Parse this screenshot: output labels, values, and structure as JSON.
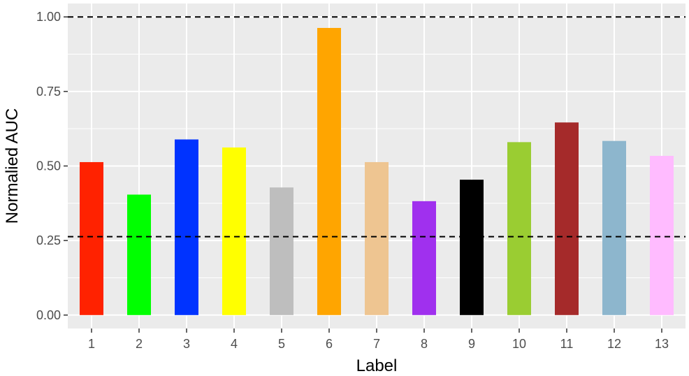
{
  "chart_data": {
    "type": "bar",
    "xlabel": "Label",
    "ylabel": "Normalied AUC",
    "categories": [
      "1",
      "2",
      "3",
      "4",
      "5",
      "6",
      "7",
      "8",
      "9",
      "10",
      "11",
      "12",
      "13"
    ],
    "values": [
      0.513,
      0.404,
      0.589,
      0.562,
      0.428,
      0.963,
      0.513,
      0.382,
      0.454,
      0.58,
      0.646,
      0.584,
      0.534
    ],
    "colors": [
      "#ff2200",
      "#00ff00",
      "#0033ff",
      "#ffff00",
      "#bebebe",
      "#ffa500",
      "#eec591",
      "#a030ee",
      "#000000",
      "#9acd32",
      "#a52a2a",
      "#8db6cd",
      "#ffbbff"
    ],
    "ylim": [
      -0.045,
      1.045
    ],
    "yticks": [
      0.0,
      0.25,
      0.5,
      0.75,
      1.0
    ],
    "ytick_labels": [
      "0.00",
      "0.25",
      "0.50",
      "0.75",
      "1.00"
    ],
    "reference_lines": [
      {
        "y": 1.0,
        "style": "dashed",
        "color": "#000000"
      },
      {
        "y": 0.263,
        "style": "dashed",
        "color": "#000000"
      }
    ],
    "grid": true,
    "panel_background": "#ebebeb",
    "grid_color": "#ffffff"
  }
}
